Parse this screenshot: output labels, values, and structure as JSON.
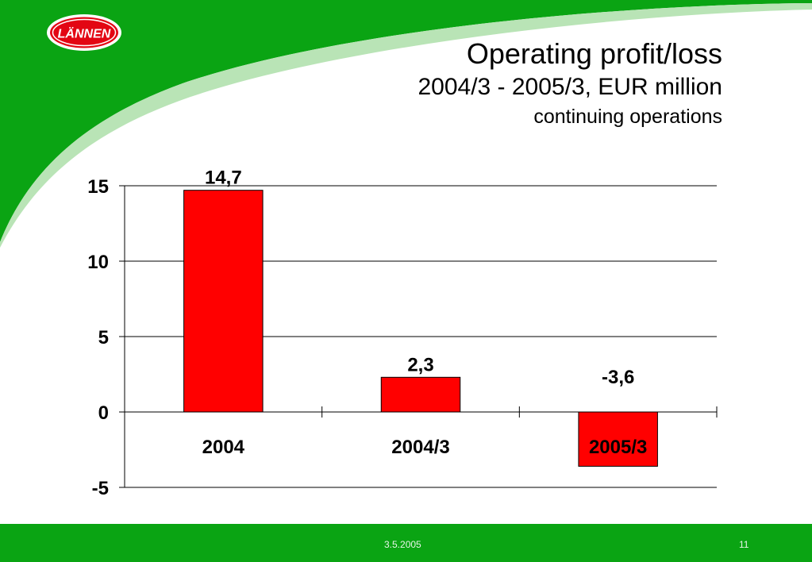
{
  "header": {
    "logo_text": "LÄNNEN",
    "title": "Operating profit/loss",
    "subtitle": "2004/3 - 2005/3, EUR million",
    "subtitle2": "continuing operations"
  },
  "colors": {
    "brand_green": "#0aa413",
    "bar_red": "#ff0000"
  },
  "chart_data": {
    "type": "bar",
    "categories": [
      "2004",
      "2004/3",
      "2005/3"
    ],
    "values": [
      14.7,
      2.3,
      -3.6
    ],
    "data_labels": [
      "14,7",
      "2,3",
      "-3,6"
    ],
    "y_ticks": [
      15,
      10,
      5,
      0,
      -5
    ],
    "ylim": [
      -5,
      15
    ],
    "grid": true,
    "legend": "none"
  },
  "footer": {
    "date": "3.5.2005",
    "page": "11"
  }
}
